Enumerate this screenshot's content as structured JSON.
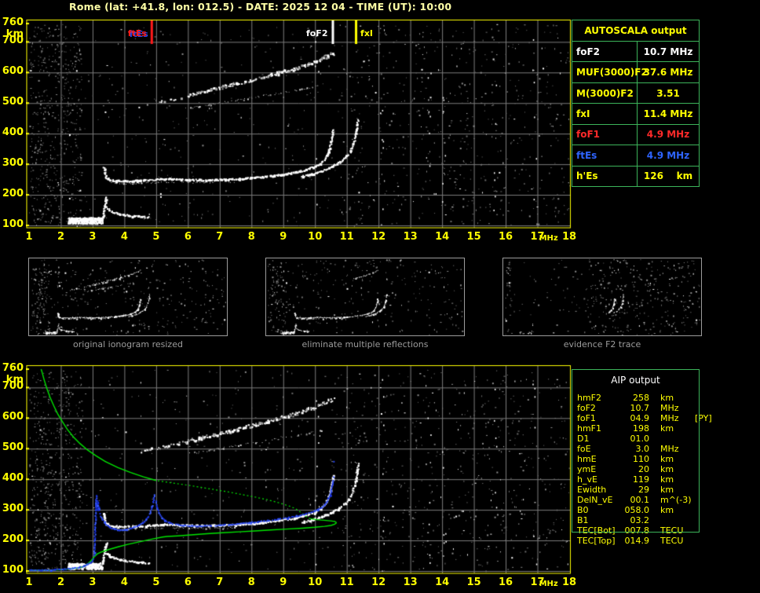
{
  "header": {
    "title": "Rome (lat: +41.8, lon: 012.5) - DATE: 2025 12 04 - TIME (UT): 10:00"
  },
  "palette": {
    "background": "#000000",
    "axis_yellow": "#ffff00",
    "title_yellow": "#ffffa6",
    "grid_gray": "#7c7c7c",
    "table_green": "#3cb45a",
    "profile_green": "#00e400",
    "trace_blue": "#2543f0",
    "marker_red": "#ff1a1a",
    "marker_white": "#ffffff",
    "text_blue": "#2e64ff",
    "caption_gray": "#9c9c9c"
  },
  "autoscala_table": {
    "title": "AUTOSCALA output",
    "rows": [
      {
        "label": "foF2",
        "value": "10.7 MHz",
        "color": "white"
      },
      {
        "label": "MUF(3000)F2",
        "value": "37.6 MHz",
        "color": "yellow"
      },
      {
        "label": "M(3000)F2",
        "value": "3.51",
        "color": "yellow"
      },
      {
        "label": "fxI",
        "value": "11.4 MHz",
        "color": "yellow"
      },
      {
        "label": "foF1",
        "value": "4.9 MHz",
        "color": "red"
      },
      {
        "label": "ftEs",
        "value": "4.9 MHz",
        "color": "blue"
      },
      {
        "label": "h'Es",
        "value": "126    km",
        "color": "yellow"
      }
    ]
  },
  "aip_table": {
    "title": "AIP output",
    "rows": [
      {
        "name": "hmF2",
        "value": "258",
        "unit": "km",
        "note": ""
      },
      {
        "name": "foF2",
        "value": "10.7",
        "unit": "MHz",
        "note": ""
      },
      {
        "name": "foF1",
        "value": "04.9",
        "unit": "MHz",
        "note": "[PY]"
      },
      {
        "name": "hmF1",
        "value": "198",
        "unit": "km",
        "note": ""
      },
      {
        "name": "D1",
        "value": "01.0",
        "unit": "",
        "note": ""
      },
      {
        "name": "foE",
        "value": "3.0",
        "unit": "MHz",
        "note": ""
      },
      {
        "name": "hmE",
        "value": "110",
        "unit": "km",
        "note": ""
      },
      {
        "name": "ymE",
        "value": "20",
        "unit": "km",
        "note": ""
      },
      {
        "name": "h_vE",
        "value": "119",
        "unit": "km",
        "note": ""
      },
      {
        "name": "Ewidth",
        "value": "29",
        "unit": "km",
        "note": ""
      },
      {
        "name": "DelN_vE",
        "value": "00.1",
        "unit": "m^(-3)",
        "note": ""
      },
      {
        "name": "B0",
        "value": "058.0",
        "unit": "km",
        "note": ""
      },
      {
        "name": "B1",
        "value": "03.2",
        "unit": "",
        "note": ""
      },
      {
        "name": "TEC[Bot]",
        "value": "007.8",
        "unit": "TECU",
        "note": ""
      },
      {
        "name": "TEC[Top]",
        "value": "014.9",
        "unit": "TECU",
        "note": ""
      }
    ]
  },
  "thumbnails": [
    {
      "caption": "original ionogram resized"
    },
    {
      "caption": "eliminate multiple reflections"
    },
    {
      "caption": "evidence F2 trace"
    }
  ],
  "chart_data": {
    "type": "scatter",
    "x_axis": {
      "label": "MHz",
      "range": [
        1,
        18
      ],
      "ticks": [
        1,
        2,
        3,
        4,
        5,
        6,
        7,
        8,
        9,
        10,
        11,
        12,
        13,
        14,
        15,
        16,
        17,
        18
      ]
    },
    "y_axis": {
      "label": "km",
      "range": [
        100,
        760
      ],
      "ticks": [
        760,
        700,
        600,
        500,
        400,
        300,
        200,
        100
      ]
    },
    "grid": true,
    "shared_echo_traces": {
      "es_layer_lead": [
        [
          2.2,
          113
        ],
        [
          2.5,
          116
        ],
        [
          2.8,
          120
        ],
        [
          3.05,
          124
        ],
        [
          3.25,
          128
        ]
      ],
      "es_layer_blob_region": {
        "f": [
          2.22,
          3.3
        ],
        "km": [
          107,
          127
        ]
      },
      "es_spike": [
        [
          3.3,
          130
        ],
        [
          3.34,
          150
        ],
        [
          3.37,
          168
        ],
        [
          3.4,
          184
        ],
        [
          3.42,
          194
        ]
      ],
      "es_tail": [
        [
          3.44,
          160
        ],
        [
          3.52,
          150
        ],
        [
          3.66,
          144
        ],
        [
          3.84,
          139
        ],
        [
          4.05,
          135
        ],
        [
          4.3,
          132
        ],
        [
          4.55,
          130
        ],
        [
          4.78,
          128
        ]
      ],
      "f_trace_ordinary": [
        [
          3.34,
          292
        ],
        [
          3.37,
          272
        ],
        [
          3.41,
          258
        ],
        [
          3.5,
          251
        ],
        [
          3.7,
          248
        ],
        [
          4.0,
          247
        ],
        [
          4.3,
          248
        ],
        [
          4.7,
          250
        ],
        [
          5.0,
          252
        ],
        [
          5.3,
          254
        ],
        [
          5.6,
          253
        ],
        [
          6.0,
          251
        ],
        [
          6.4,
          250
        ],
        [
          6.8,
          251
        ],
        [
          7.2,
          252
        ],
        [
          7.6,
          254
        ],
        [
          8.0,
          257
        ],
        [
          8.4,
          261
        ],
        [
          8.8,
          266
        ],
        [
          9.2,
          272
        ],
        [
          9.5,
          278
        ],
        [
          9.8,
          287
        ],
        [
          10.0,
          295
        ],
        [
          10.15,
          305
        ],
        [
          10.3,
          320
        ],
        [
          10.4,
          340
        ],
        [
          10.47,
          365
        ],
        [
          10.52,
          390
        ],
        [
          10.55,
          415
        ]
      ],
      "f_trace_ordinary_echo": [
        [
          3.6,
          240
        ],
        [
          4.0,
          238
        ],
        [
          4.5,
          239
        ],
        [
          5.0,
          241
        ],
        [
          5.5,
          242
        ],
        [
          6.0,
          241
        ],
        [
          6.5,
          240
        ],
        [
          7.0,
          241
        ],
        [
          7.5,
          243
        ]
      ],
      "f_trace_extraordinary": [
        [
          9.55,
          262
        ],
        [
          9.9,
          270
        ],
        [
          10.2,
          280
        ],
        [
          10.5,
          293
        ],
        [
          10.75,
          308
        ],
        [
          10.95,
          325
        ],
        [
          11.1,
          345
        ],
        [
          11.2,
          372
        ],
        [
          11.27,
          402
        ],
        [
          11.32,
          432
        ],
        [
          11.34,
          452
        ]
      ],
      "second_hop_f2": [
        [
          4.45,
          490
        ],
        [
          4.8,
          498
        ],
        [
          5.2,
          508
        ],
        [
          5.6,
          517
        ],
        [
          6.0,
          527
        ],
        [
          6.4,
          537
        ],
        [
          6.8,
          547
        ],
        [
          7.2,
          557
        ],
        [
          7.6,
          567
        ],
        [
          8.0,
          578
        ],
        [
          8.4,
          589
        ],
        [
          8.8,
          600
        ],
        [
          9.2,
          611
        ],
        [
          9.5,
          620
        ],
        [
          9.8,
          631
        ],
        [
          10.1,
          643
        ],
        [
          10.35,
          654
        ],
        [
          10.55,
          664
        ]
      ],
      "second_hop_f2_echo": [
        [
          5.9,
          482
        ],
        [
          6.3,
          489
        ],
        [
          6.7,
          496
        ],
        [
          7.1,
          503
        ],
        [
          7.5,
          510
        ],
        [
          7.9,
          517
        ],
        [
          8.3,
          524
        ],
        [
          8.7,
          531
        ],
        [
          9.1,
          538
        ],
        [
          9.5,
          545
        ],
        [
          9.9,
          553
        ],
        [
          10.2,
          560
        ]
      ]
    },
    "top_plot": {
      "name": "scaled ionogram with AUTOSCALA frequency markers",
      "markers": [
        {
          "label": "ftEs",
          "freq_mhz": 4.85,
          "color": "red",
          "side": "left",
          "ghost": true
        },
        {
          "label": "foF2",
          "freq_mhz": 10.55,
          "color": "white",
          "side": "left",
          "ghost": false
        },
        {
          "label": "fxI",
          "freq_mhz": 11.28,
          "color": "yellow",
          "side": "right",
          "ghost": false
        }
      ]
    },
    "bottom_plot": {
      "name": "ionogram with restored trace and electron density profile",
      "profile_green": {
        "bottomside_solid": [
          [
            1.0,
            102
          ],
          [
            1.4,
            102
          ],
          [
            1.8,
            103
          ],
          [
            2.1,
            105
          ],
          [
            2.4,
            108
          ],
          [
            2.6,
            111
          ],
          [
            2.75,
            116
          ],
          [
            2.85,
            124
          ],
          [
            2.95,
            133
          ],
          [
            3.05,
            146
          ],
          [
            3.15,
            156
          ],
          [
            3.3,
            163
          ],
          [
            3.5,
            170
          ],
          [
            3.8,
            179
          ],
          [
            4.1,
            187
          ],
          [
            4.5,
            196
          ],
          [
            4.9,
            205
          ],
          [
            5.2,
            211
          ],
          [
            5.35,
            213
          ],
          [
            5.7,
            215
          ],
          [
            6.1,
            218
          ],
          [
            6.6,
            222
          ],
          [
            7.1,
            225
          ],
          [
            7.6,
            228
          ],
          [
            8.1,
            231
          ],
          [
            8.6,
            234
          ],
          [
            9.1,
            237
          ],
          [
            9.6,
            240
          ],
          [
            10.0,
            243
          ],
          [
            10.3,
            246
          ],
          [
            10.5,
            249
          ],
          [
            10.62,
            253
          ],
          [
            10.68,
            258
          ]
        ],
        "peak_loop_solid": [
          [
            10.68,
            258
          ],
          [
            10.62,
            262
          ],
          [
            10.48,
            264
          ],
          [
            10.28,
            266
          ],
          [
            10.05,
            268
          ],
          [
            9.85,
            271
          ]
        ],
        "topside_dotted": [
          [
            9.85,
            271
          ],
          [
            9.7,
            280
          ],
          [
            9.55,
            292
          ],
          [
            9.4,
            303
          ],
          [
            9.2,
            312
          ],
          [
            8.9,
            322
          ],
          [
            8.5,
            333
          ],
          [
            8.1,
            342
          ],
          [
            7.7,
            350
          ],
          [
            7.3,
            358
          ],
          [
            6.9,
            365
          ],
          [
            6.5,
            372
          ],
          [
            6.1,
            379
          ],
          [
            5.7,
            385
          ],
          [
            5.3,
            391
          ],
          [
            5.0,
            396
          ]
        ],
        "topside_solid": [
          [
            5.0,
            396
          ],
          [
            4.6,
            408
          ],
          [
            4.2,
            422
          ],
          [
            3.8,
            438
          ],
          [
            3.4,
            458
          ],
          [
            3.1,
            477
          ],
          [
            2.85,
            495
          ],
          [
            2.6,
            517
          ],
          [
            2.4,
            538
          ],
          [
            2.2,
            564
          ],
          [
            2.05,
            588
          ],
          [
            1.9,
            614
          ],
          [
            1.78,
            640
          ],
          [
            1.66,
            668
          ],
          [
            1.56,
            697
          ],
          [
            1.47,
            727
          ],
          [
            1.41,
            750
          ],
          [
            1.38,
            760
          ]
        ]
      },
      "restored_trace_blue": {
        "segments": [
          [
            [
              1.0,
              105
            ],
            [
              1.4,
              105
            ],
            [
              1.8,
              106
            ],
            [
              2.1,
              108
            ],
            [
              2.35,
              111
            ],
            [
              2.55,
              114
            ],
            [
              2.7,
              118
            ],
            [
              2.82,
              123
            ],
            [
              2.92,
              130
            ],
            [
              3.0,
              140
            ]
          ],
          [
            [
              3.02,
              155
            ],
            [
              3.04,
              178
            ],
            [
              3.05,
              205
            ],
            [
              3.06,
              238
            ],
            [
              3.07,
              272
            ],
            [
              3.08,
              305
            ],
            [
              3.09,
              332
            ],
            [
              3.1,
              350
            ]
          ],
          [
            [
              3.12,
              330
            ],
            [
              3.16,
              305
            ],
            [
              3.22,
              285
            ],
            [
              3.3,
              268
            ],
            [
              3.4,
              254
            ],
            [
              3.52,
              245
            ],
            [
              3.66,
              239
            ],
            [
              3.82,
              236
            ],
            [
              4.0,
              236
            ],
            [
              4.2,
              241
            ],
            [
              4.38,
              249
            ],
            [
              4.55,
              259
            ],
            [
              4.68,
              272
            ],
            [
              4.78,
              290
            ],
            [
              4.85,
              312
            ],
            [
              4.9,
              335
            ],
            [
              4.93,
              352
            ]
          ],
          [
            [
              4.97,
              330
            ],
            [
              5.02,
              308
            ],
            [
              5.08,
              290
            ],
            [
              5.16,
              277
            ],
            [
              5.26,
              268
            ],
            [
              5.4,
              260
            ],
            [
              5.6,
              254
            ],
            [
              5.85,
              251
            ],
            [
              6.1,
              249
            ],
            [
              6.4,
              249
            ],
            [
              6.7,
              250
            ],
            [
              7.0,
              252
            ],
            [
              7.3,
              254
            ],
            [
              7.6,
              257
            ],
            [
              7.9,
              260
            ],
            [
              8.2,
              263
            ],
            [
              8.5,
              267
            ],
            [
              8.8,
              271
            ],
            [
              9.1,
              276
            ],
            [
              9.4,
              282
            ],
            [
              9.7,
              289
            ],
            [
              9.95,
              297
            ],
            [
              10.15,
              307
            ],
            [
              10.3,
              320
            ],
            [
              10.4,
              338
            ],
            [
              10.48,
              360
            ],
            [
              10.53,
              385
            ],
            [
              10.56,
              408
            ]
          ]
        ],
        "isolated_points": [
          [
            10.57,
            460
          ]
        ]
      }
    }
  }
}
